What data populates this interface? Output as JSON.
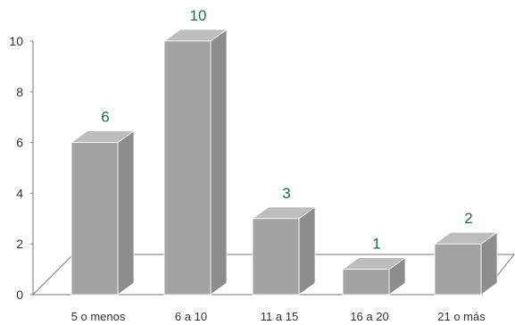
{
  "chart_data": {
    "type": "bar",
    "categories": [
      "5 o menos",
      "6 a 10",
      "11 a 15",
      "16 a 20",
      "21 o más"
    ],
    "values": [
      6,
      10,
      3,
      1,
      2
    ],
    "data_labels": [
      "6",
      "10",
      "3",
      "1",
      "2"
    ],
    "ylim": [
      0,
      10
    ],
    "yticks": [
      0,
      2,
      4,
      6,
      8,
      10
    ],
    "three_d": true,
    "grid": false,
    "colors": {
      "bar_front": "#a3a3a3",
      "bar_side": "#8d8d8d",
      "bar_top": "#bdbdbd",
      "data_label": "#1c6b5e",
      "axis": "#777777"
    }
  }
}
